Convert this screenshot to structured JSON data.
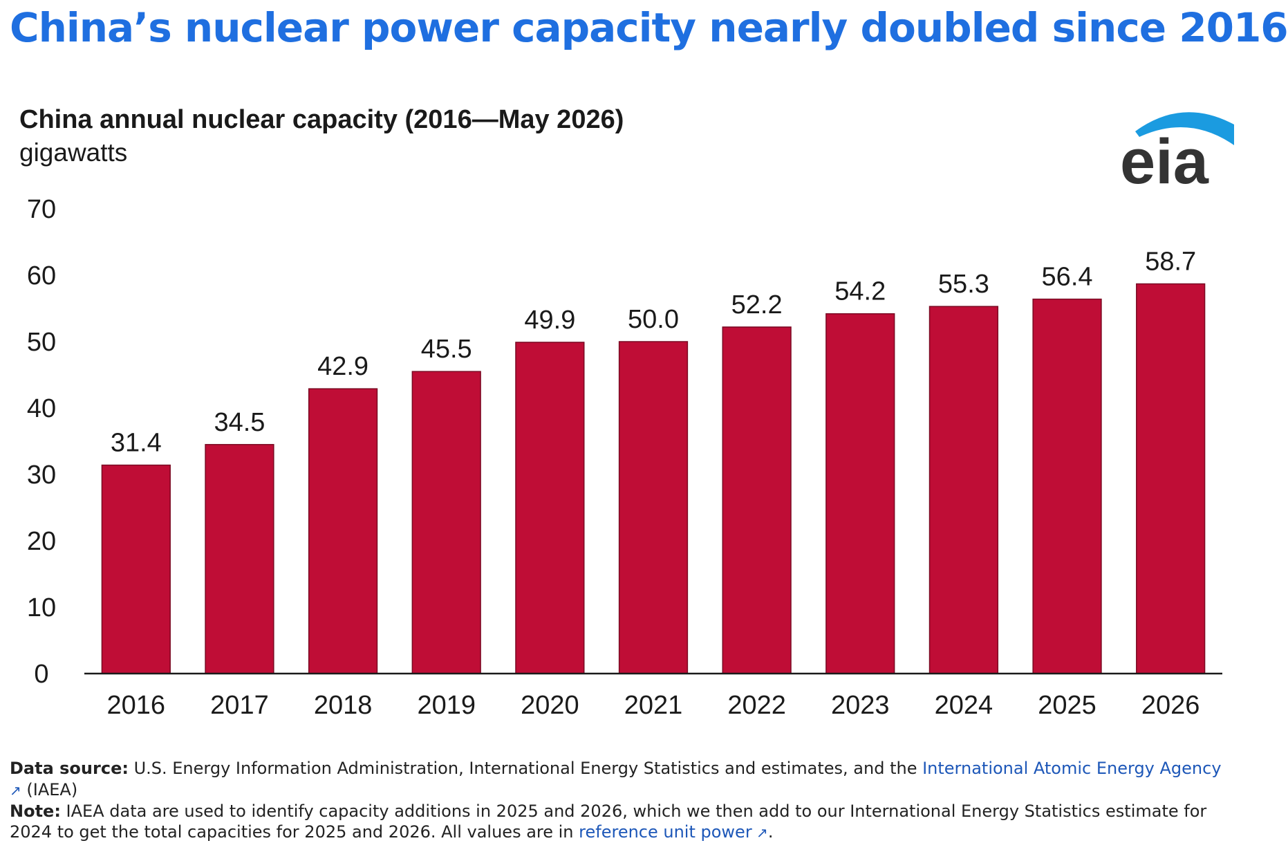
{
  "headline": "China’s nuclear power capacity nearly doubled since 2016",
  "logo": {
    "text": "eia",
    "arc_color": "#1b9be0",
    "text_color": "#333333"
  },
  "chart_data": {
    "type": "bar",
    "title": "China annual nuclear capacity (2016—May 2026)",
    "ylabel": "gigawatts",
    "xlabel": "",
    "categories": [
      "2016",
      "2017",
      "2018",
      "2019",
      "2020",
      "2021",
      "2022",
      "2023",
      "2024",
      "2025",
      "2026"
    ],
    "values": [
      31.4,
      34.5,
      42.9,
      45.5,
      49.9,
      50.0,
      52.2,
      54.2,
      55.3,
      56.4,
      58.7
    ],
    "data_labels": [
      "31.4",
      "34.5",
      "42.9",
      "45.5",
      "49.9",
      "50.0",
      "52.2",
      "54.2",
      "55.3",
      "56.4",
      "58.7"
    ],
    "ylim": [
      0,
      70
    ],
    "yticks": [
      "0",
      "10",
      "20",
      "30",
      "40",
      "50",
      "60",
      "70"
    ],
    "bar_color": "#bf0d36",
    "grid": false,
    "legend": "none"
  },
  "footer": {
    "source_label": "Data source:",
    "source_text_1": " U.S. Energy Information Administration, International Energy Statistics and estimates, and the ",
    "source_link": "International Atomic Energy Agency",
    "source_text_2": " (IAEA)",
    "note_label": "Note:",
    "note_text_1": " IAEA data are used to identify capacity additions in 2025 and 2026, which we then add to our International Energy Statistics estimate for 2024 to get the total capacities for 2025 and 2026. All values are in ",
    "note_link": "reference unit power",
    "note_text_2": "."
  },
  "colors": {
    "headline": "#1f6fe0",
    "link": "#1d57b8"
  }
}
